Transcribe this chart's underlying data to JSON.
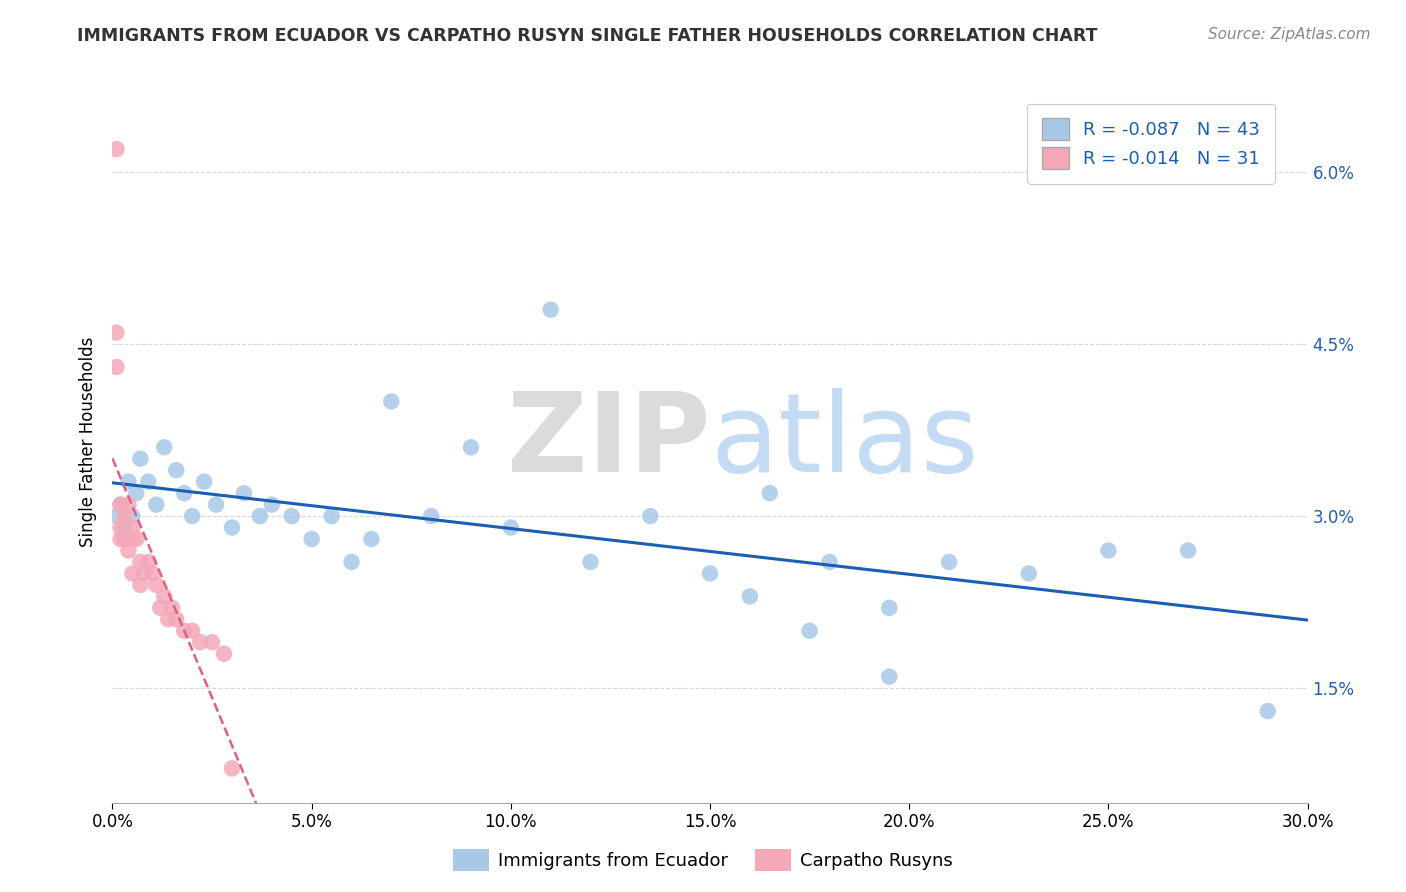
{
  "title": "IMMIGRANTS FROM ECUADOR VS CARPATHO RUSYN SINGLE FATHER HOUSEHOLDS CORRELATION CHART",
  "source_text": "Source: ZipAtlas.com",
  "ylabel": "Single Father Households",
  "xlabel": "",
  "watermark_part1": "ZIP",
  "watermark_part2": "atlas",
  "r1": -0.087,
  "n1": 43,
  "r2": -0.014,
  "n2": 31,
  "legend_label1": "Immigrants from Ecuador",
  "legend_label2": "Carpatho Rusyns",
  "color1": "#a8c8e8",
  "color2": "#f4a8b8",
  "trendline1_color": "#1a5fb4",
  "trendline2_color": "#e06080",
  "xmin": 0.0,
  "xmax": 0.3,
  "ymin": 0.005,
  "ymax": 0.068,
  "yticks": [
    0.015,
    0.03,
    0.045,
    0.06
  ],
  "ytick_labels": [
    "1.5%",
    "3.0%",
    "4.5%",
    "6.0%"
  ],
  "xticks": [
    0.0,
    0.05,
    0.1,
    0.15,
    0.2,
    0.25,
    0.3
  ],
  "xtick_labels": [
    "0.0%",
    "5.0%",
    "10.0%",
    "15.0%",
    "20.0%",
    "25.0%",
    "30.0%"
  ],
  "scatter1_x": [
    0.001,
    0.002,
    0.003,
    0.004,
    0.005,
    0.006,
    0.007,
    0.009,
    0.011,
    0.013,
    0.016,
    0.018,
    0.02,
    0.023,
    0.026,
    0.03,
    0.033,
    0.037,
    0.04,
    0.045,
    0.05,
    0.055,
    0.06,
    0.065,
    0.07,
    0.08,
    0.09,
    0.1,
    0.11,
    0.12,
    0.135,
    0.15,
    0.165,
    0.18,
    0.195,
    0.21,
    0.23,
    0.25,
    0.27,
    0.29,
    0.16,
    0.175,
    0.195
  ],
  "scatter1_y": [
    0.03,
    0.031,
    0.029,
    0.033,
    0.03,
    0.032,
    0.035,
    0.033,
    0.031,
    0.036,
    0.034,
    0.032,
    0.03,
    0.033,
    0.031,
    0.029,
    0.032,
    0.03,
    0.031,
    0.03,
    0.028,
    0.03,
    0.026,
    0.028,
    0.04,
    0.03,
    0.036,
    0.029,
    0.048,
    0.026,
    0.03,
    0.025,
    0.032,
    0.026,
    0.022,
    0.026,
    0.025,
    0.027,
    0.027,
    0.013,
    0.023,
    0.02,
    0.016
  ],
  "scatter2_x": [
    0.001,
    0.001,
    0.001,
    0.002,
    0.002,
    0.002,
    0.003,
    0.003,
    0.004,
    0.004,
    0.005,
    0.005,
    0.005,
    0.006,
    0.007,
    0.007,
    0.008,
    0.009,
    0.01,
    0.011,
    0.012,
    0.013,
    0.014,
    0.015,
    0.016,
    0.018,
    0.02,
    0.022,
    0.025,
    0.028,
    0.03
  ],
  "scatter2_y": [
    0.062,
    0.046,
    0.043,
    0.031,
    0.029,
    0.028,
    0.03,
    0.028,
    0.031,
    0.027,
    0.029,
    0.028,
    0.025,
    0.028,
    0.026,
    0.024,
    0.025,
    0.026,
    0.025,
    0.024,
    0.022,
    0.023,
    0.021,
    0.022,
    0.021,
    0.02,
    0.02,
    0.019,
    0.019,
    0.018,
    0.008
  ],
  "background_color": "#ffffff",
  "grid_color": "#d8d8d8"
}
